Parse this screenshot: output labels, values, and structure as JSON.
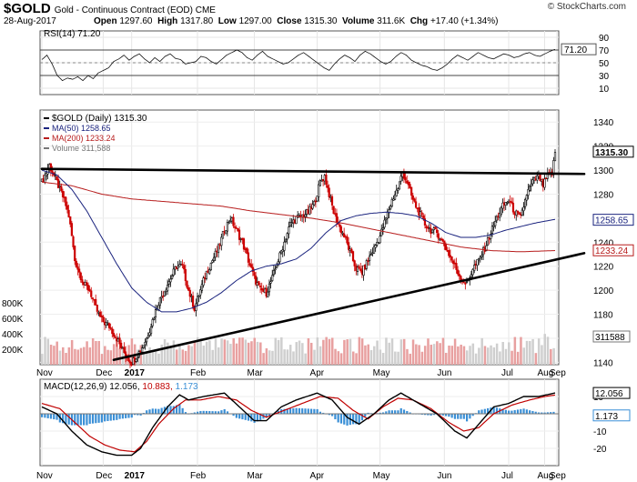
{
  "header": {
    "symbol": "$GOLD",
    "description": "Gold - Continuous Contract (EOD)",
    "exchange": "CME",
    "date": "28-Aug-2017",
    "open_label": "Open",
    "open": "1297.60",
    "high_label": "High",
    "high": "1317.80",
    "low_label": "Low",
    "low": "1297.00",
    "close_label": "Close",
    "close": "1315.30",
    "volume_label": "Volume",
    "volume": "311.6K",
    "chg_label": "Chg",
    "chg": "+17.40 (+1.34%)",
    "watermark": "© StockCharts.com"
  },
  "colors": {
    "up": "#000000",
    "down": "#cc0000",
    "ma50": "#1a237e",
    "ma200": "#b71c1c",
    "volume_up": "#cfcfcf",
    "volume_down": "#e8a0a0",
    "macd_hist": "#3a8fd6",
    "trendline": "#000000"
  },
  "chart_data": [
    {
      "type": "line",
      "name": "RSI panel",
      "title": "RSI(14) 71.20",
      "ylim": [
        0,
        100
      ],
      "yticks": [
        10,
        30,
        50,
        70,
        90
      ],
      "reference_lines": [
        30,
        70
      ],
      "last_value": "71.20",
      "x": [
        0,
        3,
        6,
        9,
        12,
        15,
        18,
        21,
        24,
        27,
        30,
        33,
        36,
        39,
        42,
        45,
        48,
        51,
        54,
        57,
        60,
        63,
        66,
        69,
        72,
        75,
        78,
        81,
        84,
        87,
        90,
        93,
        96,
        99,
        102,
        105,
        108,
        111,
        114,
        117,
        120,
        123,
        126,
        129,
        132,
        135,
        138,
        141,
        144,
        147,
        150,
        153,
        156,
        159,
        162,
        165,
        168,
        171,
        174,
        177,
        180,
        183,
        186,
        189,
        192,
        195,
        198,
        201,
        204,
        207,
        210,
        213,
        216,
        219,
        222,
        225,
        228,
        231,
        234,
        237,
        240,
        243,
        246,
        249,
        252,
        255,
        258,
        261,
        264,
        267,
        270,
        273,
        276,
        279,
        282,
        285,
        288,
        291,
        294,
        297,
        300
      ],
      "values": [
        55,
        62,
        48,
        30,
        22,
        26,
        24,
        28,
        22,
        30,
        25,
        34,
        38,
        42,
        52,
        56,
        62,
        54,
        60,
        64,
        56,
        50,
        58,
        52,
        60,
        64,
        57,
        55,
        48,
        50,
        52,
        60,
        58,
        52,
        48,
        55,
        62,
        66,
        70,
        66,
        58,
        54,
        62,
        68,
        60,
        56,
        52,
        48,
        50,
        56,
        62,
        66,
        60,
        54,
        48,
        42,
        38,
        48,
        56,
        62,
        58,
        52,
        62,
        68,
        64,
        58,
        52,
        48,
        52,
        60,
        66,
        62,
        54,
        50,
        46,
        44,
        40,
        38,
        42,
        48,
        56,
        62,
        58,
        54,
        60,
        66,
        62,
        58,
        56,
        60,
        64,
        62,
        58,
        60,
        64,
        66,
        62,
        60,
        64,
        68,
        71.2
      ]
    },
    {
      "type": "candlestick",
      "name": "$GOLD (Daily) 1315.30",
      "legend": [
        "$GOLD (Daily) 1315.30",
        "MA(50) 1258.65",
        "MA(200) 1233.24",
        "Volume 311,588"
      ],
      "x_ticks": [
        "Nov",
        "Dec",
        "2017",
        "Feb",
        "Mar",
        "Apr",
        "May",
        "Jun",
        "Jul",
        "Aug",
        "Sep"
      ],
      "ylim": [
        1138,
        1350
      ],
      "yticks": [
        1140,
        1160,
        1180,
        1200,
        1220,
        1240,
        1260,
        1280,
        1300,
        1320,
        1340
      ],
      "volume_ticks": [
        "200K",
        "400K",
        "600K",
        "800K"
      ],
      "last_labels": {
        "close": "1315.30",
        "ma50": "1258.65",
        "ma200": "1233.24",
        "volume": "311588"
      },
      "price_anchors": [
        [
          0,
          1290
        ],
        [
          5,
          1304
        ],
        [
          10,
          1290
        ],
        [
          15,
          1275
        ],
        [
          18,
          1262
        ],
        [
          20,
          1245
        ],
        [
          22,
          1225
        ],
        [
          25,
          1215
        ],
        [
          28,
          1205
        ],
        [
          32,
          1200
        ],
        [
          36,
          1185
        ],
        [
          40,
          1175
        ],
        [
          45,
          1170
        ],
        [
          50,
          1160
        ],
        [
          54,
          1150
        ],
        [
          58,
          1143
        ],
        [
          60,
          1140
        ],
        [
          63,
          1145
        ],
        [
          66,
          1150
        ],
        [
          70,
          1160
        ],
        [
          74,
          1175
        ],
        [
          78,
          1190
        ],
        [
          82,
          1200
        ],
        [
          86,
          1210
        ],
        [
          90,
          1220
        ],
        [
          94,
          1220
        ],
        [
          98,
          1200
        ],
        [
          102,
          1185
        ],
        [
          106,
          1200
        ],
        [
          110,
          1215
        ],
        [
          114,
          1225
        ],
        [
          118,
          1235
        ],
        [
          122,
          1250
        ],
        [
          126,
          1260
        ],
        [
          130,
          1250
        ],
        [
          134,
          1240
        ],
        [
          138,
          1225
        ],
        [
          142,
          1210
        ],
        [
          146,
          1200
        ],
        [
          150,
          1198
        ],
        [
          154,
          1210
        ],
        [
          158,
          1225
        ],
        [
          162,
          1240
        ],
        [
          166,
          1255
        ],
        [
          170,
          1260
        ],
        [
          174,
          1262
        ],
        [
          178,
          1265
        ],
        [
          182,
          1272
        ],
        [
          186,
          1290
        ],
        [
          189,
          1295
        ],
        [
          192,
          1280
        ],
        [
          195,
          1265
        ],
        [
          198,
          1255
        ],
        [
          202,
          1245
        ],
        [
          206,
          1232
        ],
        [
          210,
          1218
        ],
        [
          214,
          1215
        ],
        [
          218,
          1225
        ],
        [
          222,
          1235
        ],
        [
          226,
          1245
        ],
        [
          230,
          1260
        ],
        [
          234,
          1275
        ],
        [
          238,
          1285
        ],
        [
          241,
          1298
        ],
        [
          244,
          1290
        ],
        [
          248,
          1275
        ],
        [
          252,
          1265
        ],
        [
          256,
          1255
        ],
        [
          260,
          1250
        ],
        [
          264,
          1248
        ],
        [
          268,
          1240
        ],
        [
          272,
          1230
        ],
        [
          276,
          1220
        ],
        [
          280,
          1210
        ],
        [
          284,
          1205
        ],
        [
          288,
          1218
        ],
        [
          292,
          1225
        ],
        [
          296,
          1235
        ],
        [
          300,
          1248
        ],
        [
          304,
          1260
        ],
        [
          308,
          1270
        ],
        [
          312,
          1275
        ],
        [
          316,
          1265
        ],
        [
          320,
          1260
        ],
        [
          324,
          1280
        ],
        [
          328,
          1290
        ],
        [
          332,
          1295
        ],
        [
          335,
          1287
        ],
        [
          338,
          1295
        ],
        [
          341,
          1297
        ],
        [
          343,
          1315
        ]
      ],
      "ma50_anchors": [
        [
          0,
          1300
        ],
        [
          10,
          1296
        ],
        [
          20,
          1284
        ],
        [
          30,
          1266
        ],
        [
          40,
          1244
        ],
        [
          50,
          1222
        ],
        [
          60,
          1202
        ],
        [
          70,
          1190
        ],
        [
          80,
          1182
        ],
        [
          90,
          1182
        ],
        [
          100,
          1185
        ],
        [
          110,
          1190
        ],
        [
          120,
          1198
        ],
        [
          130,
          1208
        ],
        [
          140,
          1216
        ],
        [
          150,
          1220
        ],
        [
          160,
          1222
        ],
        [
          170,
          1226
        ],
        [
          180,
          1235
        ],
        [
          190,
          1248
        ],
        [
          200,
          1258
        ],
        [
          210,
          1262
        ],
        [
          220,
          1264
        ],
        [
          230,
          1265
        ],
        [
          240,
          1264
        ],
        [
          250,
          1262
        ],
        [
          260,
          1256
        ],
        [
          270,
          1248
        ],
        [
          280,
          1244
        ],
        [
          290,
          1244
        ],
        [
          300,
          1246
        ],
        [
          310,
          1250
        ],
        [
          320,
          1253
        ],
        [
          330,
          1256
        ],
        [
          343,
          1259
        ]
      ],
      "ma200_anchors": [
        [
          0,
          1290
        ],
        [
          20,
          1287
        ],
        [
          40,
          1280
        ],
        [
          60,
          1276
        ],
        [
          80,
          1274
        ],
        [
          100,
          1272
        ],
        [
          120,
          1270
        ],
        [
          140,
          1266
        ],
        [
          160,
          1263
        ],
        [
          180,
          1260
        ],
        [
          200,
          1256
        ],
        [
          220,
          1251
        ],
        [
          240,
          1246
        ],
        [
          260,
          1241
        ],
        [
          280,
          1236
        ],
        [
          300,
          1233
        ],
        [
          320,
          1232
        ],
        [
          343,
          1233
        ]
      ],
      "trendlines": [
        [
          [
            0,
            1301
          ],
          [
            343,
            1297
          ]
        ],
        [
          [
            48,
            1142
          ],
          [
            343,
            1226
          ]
        ]
      ]
    },
    {
      "type": "line",
      "name": "MACD panel",
      "title": "MACD(12,26,9) 12.056, 10.883, 1.173",
      "macd_label": "MACD(12,26,9) 12.056,",
      "signal_label": "10.883,",
      "hist_label": "1.173",
      "ylim": [
        -30,
        20
      ],
      "yticks": [
        -20,
        -10,
        0,
        10
      ],
      "last_labels": {
        "macd": "12.056",
        "hist": "1.173"
      },
      "macd_anchors": [
        [
          0,
          4
        ],
        [
          10,
          0
        ],
        [
          20,
          -10
        ],
        [
          30,
          -18
        ],
        [
          40,
          -22
        ],
        [
          50,
          -24
        ],
        [
          60,
          -24
        ],
        [
          66,
          -20
        ],
        [
          74,
          -8
        ],
        [
          84,
          4
        ],
        [
          92,
          11
        ],
        [
          98,
          8
        ],
        [
          108,
          10
        ],
        [
          122,
          12
        ],
        [
          132,
          4
        ],
        [
          142,
          -4
        ],
        [
          150,
          -4
        ],
        [
          160,
          4
        ],
        [
          170,
          8
        ],
        [
          184,
          12
        ],
        [
          194,
          8
        ],
        [
          204,
          -2
        ],
        [
          212,
          -6
        ],
        [
          222,
          0
        ],
        [
          232,
          8
        ],
        [
          240,
          12
        ],
        [
          252,
          6
        ],
        [
          264,
          0
        ],
        [
          276,
          -10
        ],
        [
          284,
          -14
        ],
        [
          292,
          -6
        ],
        [
          302,
          4
        ],
        [
          312,
          6
        ],
        [
          322,
          10
        ],
        [
          332,
          10
        ],
        [
          343,
          12.056
        ]
      ],
      "signal_anchors": [
        [
          0,
          6
        ],
        [
          12,
          3
        ],
        [
          22,
          -5
        ],
        [
          32,
          -13
        ],
        [
          42,
          -18
        ],
        [
          52,
          -21
        ],
        [
          62,
          -22
        ],
        [
          70,
          -16
        ],
        [
          78,
          -6
        ],
        [
          88,
          3
        ],
        [
          96,
          8
        ],
        [
          106,
          8
        ],
        [
          118,
          10
        ],
        [
          130,
          8
        ],
        [
          140,
          2
        ],
        [
          150,
          -2
        ],
        [
          162,
          2
        ],
        [
          174,
          6
        ],
        [
          186,
          10
        ],
        [
          198,
          9
        ],
        [
          208,
          2
        ],
        [
          218,
          -3
        ],
        [
          228,
          4
        ],
        [
          238,
          9
        ],
        [
          248,
          8
        ],
        [
          260,
          3
        ],
        [
          272,
          -5
        ],
        [
          282,
          -10
        ],
        [
          292,
          -8
        ],
        [
          302,
          0
        ],
        [
          314,
          5
        ],
        [
          326,
          8
        ],
        [
          336,
          10
        ],
        [
          343,
          10.883
        ]
      ]
    }
  ],
  "x_axis": [
    "Nov",
    "Dec",
    "2017",
    "Feb",
    "Mar",
    "Apr",
    "May",
    "Jun",
    "Jul",
    "Aug",
    "Sep"
  ]
}
